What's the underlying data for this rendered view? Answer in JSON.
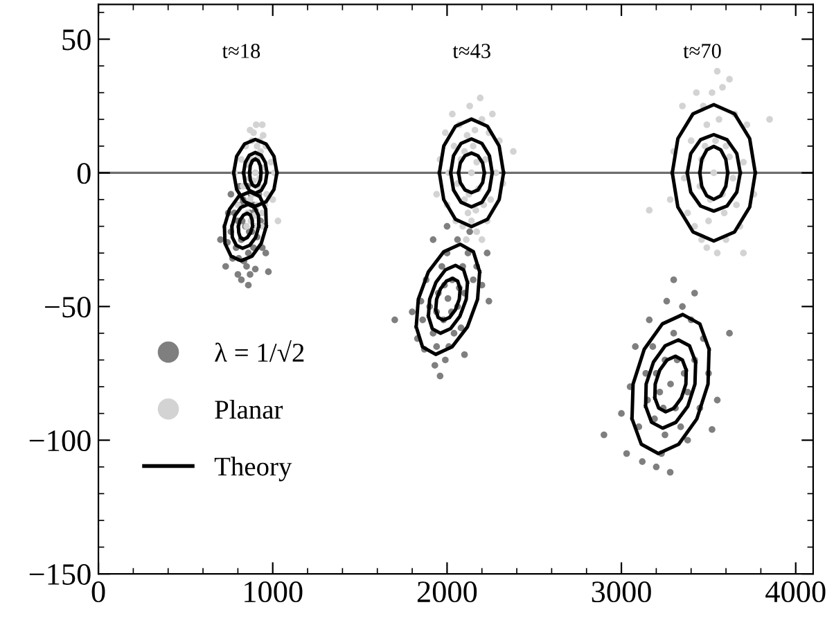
{
  "chart_data": {
    "type": "scatter",
    "xlim": [
      0,
      4100
    ],
    "ylim": [
      -150,
      63
    ],
    "xticks": [
      0,
      1000,
      2000,
      3000,
      4000,
      {
        "value": 200,
        "label": null
      },
      {
        "value": 400,
        "label": null
      },
      {
        "value": 600,
        "label": null
      },
      {
        "value": 800,
        "label": null
      },
      {
        "value": 1200,
        "label": null
      },
      {
        "value": 1400,
        "label": null
      },
      {
        "value": 1600,
        "label": null
      },
      {
        "value": 1800,
        "label": null
      },
      {
        "value": 2200,
        "label": null
      },
      {
        "value": 2400,
        "label": null
      },
      {
        "value": 2600,
        "label": null
      },
      {
        "value": 2800,
        "label": null
      },
      {
        "value": 3200,
        "label": null
      },
      {
        "value": 3400,
        "label": null
      },
      {
        "value": 3600,
        "label": null
      },
      {
        "value": 3800,
        "label": null
      }
    ],
    "yticks": [
      {
        "value": -150,
        "label": "−150"
      },
      {
        "value": -100,
        "label": "−100"
      },
      {
        "value": -50,
        "label": "−50"
      },
      0,
      50,
      {
        "value": -140,
        "label": null
      },
      {
        "value": -130,
        "label": null
      },
      {
        "value": -120,
        "label": null
      },
      {
        "value": -110,
        "label": null
      },
      {
        "value": -90,
        "label": null
      },
      {
        "value": -80,
        "label": null
      },
      {
        "value": -70,
        "label": null
      },
      {
        "value": -60,
        "label": null
      },
      {
        "value": -40,
        "label": null
      },
      {
        "value": -30,
        "label": null
      },
      {
        "value": -20,
        "label": null
      },
      {
        "value": -10,
        "label": null
      },
      {
        "value": 10,
        "label": null
      },
      {
        "value": 20,
        "label": null
      },
      {
        "value": 30,
        "label": null
      },
      {
        "value": 40,
        "label": null
      },
      {
        "value": 60,
        "label": null
      }
    ],
    "grid": false,
    "legend": "bottom left",
    "ref_lines": [
      {
        "axis": "y",
        "value": 0,
        "color": "#6e6e6e"
      }
    ],
    "annotations": [
      "t≈18",
      "t≈43",
      "t≈70"
    ],
    "series": [
      {
        "name": "λ = 1/√2",
        "marker": "circle",
        "color": "#7f7f7f",
        "x": [
          843,
          870,
          820,
          800,
          880,
          860,
          830,
          900,
          790,
          760,
          850,
          910,
          815,
          875,
          770,
          930,
          740,
          800,
          860,
          900,
          960,
          700,
          820,
          950,
          780,
          890,
          835,
          855,
          745,
          975,
          730,
          890,
          810,
          920,
          870,
          805,
          760,
          940,
          825,
          865,
          2005,
          2030,
          1980,
          1950,
          2060,
          2090,
          1920,
          2000,
          2100,
          1900,
          2040,
          1970,
          2120,
          1860,
          2060,
          1940,
          2150,
          1880,
          2010,
          2080,
          1990,
          1850,
          2170,
          1930,
          2000,
          2200,
          1800,
          1960,
          2100,
          1700,
          2240,
          1870,
          2130,
          1920,
          2025,
          1985,
          2070,
          1940,
          1830,
          2230,
          3282,
          3320,
          3240,
          3200,
          3380,
          3300,
          3250,
          3150,
          3420,
          3340,
          3180,
          3100,
          3400,
          3230,
          3450,
          3050,
          3350,
          3120,
          3280,
          3500,
          3000,
          3380,
          3160,
          3420,
          2900,
          3550,
          3300,
          3080,
          3200,
          3620,
          3250,
          3310,
          3190,
          3360,
          3140,
          3470,
          3030,
          3260,
          3520,
          3220
        ],
        "values": [
          -20,
          -15,
          -25,
          -18,
          -22,
          -30,
          -10,
          -14,
          -28,
          -22,
          -35,
          -24,
          -12,
          -8,
          -32,
          -18,
          -26,
          -38,
          -42,
          -36,
          -30,
          -25,
          -40,
          -20,
          -15,
          -28,
          -33,
          -5,
          -15,
          -37,
          -35,
          -12,
          -5,
          -8,
          -38,
          -32,
          -8,
          -28,
          -18,
          -22,
          -47,
          -40,
          -55,
          -45,
          -50,
          -35,
          -60,
          -30,
          -45,
          -50,
          -60,
          -35,
          -30,
          -55,
          -25,
          -65,
          -40,
          -40,
          -65,
          -58,
          -70,
          -48,
          -35,
          -72,
          -20,
          -42,
          -52,
          -76,
          -68,
          -55,
          -48,
          -66,
          -22,
          -25,
          -52,
          -42,
          -43,
          -52,
          -62,
          -30,
          -79,
          -70,
          -88,
          -75,
          -82,
          -60,
          -98,
          -85,
          -70,
          -95,
          -65,
          -95,
          -55,
          -105,
          -88,
          -80,
          -50,
          -108,
          -112,
          -75,
          -90,
          -100,
          -55,
          -45,
          -98,
          -85,
          -40,
          -65,
          -110,
          -60,
          -70,
          -88,
          -92,
          -75,
          -75,
          -62,
          -105,
          -48,
          -96,
          -82
        ]
      },
      {
        "name": "Planar",
        "marker": "circle",
        "color": "#d3d3d3",
        "x": [
          900,
          880,
          920,
          870,
          930,
          890,
          910,
          860,
          950,
          845,
          940,
          875,
          925,
          905,
          830,
          965,
          885,
          915,
          855,
          945,
          895,
          870,
          960,
          820,
          1000,
          990,
          850,
          935,
          1030,
          780,
          910,
          890,
          955,
          865,
          925,
          880,
          900,
          1010,
          800,
          940,
          2140,
          2100,
          2180,
          2060,
          2220,
          2120,
          2160,
          2040,
          2250,
          2090,
          2200,
          2010,
          2280,
          2130,
          2170,
          2070,
          2230,
          2000,
          2300,
          2110,
          2190,
          2050,
          1960,
          2320,
          2150,
          2125,
          2210,
          2080,
          2240,
          1990,
          2380,
          2140,
          2170,
          2100,
          2030,
          2260,
          1940,
          2200,
          2115,
          2165,
          3530,
          3480,
          3580,
          3450,
          3620,
          3500,
          3560,
          3400,
          3660,
          3470,
          3600,
          3360,
          3700,
          3520,
          3550,
          3420,
          3650,
          3300,
          3760,
          3490,
          3580,
          3350,
          3720,
          3380,
          3680,
          3540,
          3510,
          3600,
          3460,
          3640,
          3160,
          3850,
          3430,
          3620,
          3550,
          3700,
          3280,
          3460,
          3590,
          3490
        ],
        "values": [
          0,
          5,
          -5,
          -10,
          8,
          15,
          -12,
          3,
          2,
          10,
          -15,
          -18,
          12,
          18,
          -5,
          -8,
          -8,
          6,
          -15,
          14,
          -16,
          16,
          10,
          5,
          -10,
          4,
          -20,
          -20,
          -18,
          0,
          10,
          -3,
          -12,
          -2,
          -2,
          12,
          -20,
          0,
          -12,
          18,
          0,
          8,
          -6,
          -4,
          5,
          -15,
          16,
          10,
          -10,
          -20,
          20,
          0,
          0,
          25,
          -22,
          18,
          -18,
          -12,
          12,
          -25,
          28,
          -18,
          5,
          -4,
          10,
          -8,
          -12,
          5,
          15,
          15,
          8,
          -18,
          4,
          -10,
          22,
          22,
          -8,
          -25,
          14,
          -14,
          0,
          10,
          -8,
          -5,
          6,
          -18,
          20,
          12,
          -12,
          25,
          -25,
          -2,
          4,
          30,
          -30,
          -20,
          22,
          8,
          -8,
          -28,
          32,
          25,
          18,
          -15,
          -20,
          12,
          -10,
          10,
          5,
          -2,
          -14,
          20,
          30,
          35,
          38,
          -30,
          -10,
          -25,
          -15,
          18
        ]
      },
      {
        "name": "Theory",
        "type": "line",
        "color": "#000000",
        "x": [
          776,
          793,
          838,
          900,
          962,
          1007,
          1024,
          900,
          776,
          793,
          838,
          900,
          962,
          1007,
          1024
        ],
        "values": [
          0,
          6.2,
          10.8,
          12.5,
          10.8,
          6.2,
          0,
          null,
          0,
          -6.2,
          -10.8,
          -12.5,
          -10.8,
          -6.2,
          0
        ]
      },
      {
        "type": "line",
        "color": "#000000",
        "x": [
          833,
          842,
          866,
          900,
          934,
          958,
          967,
          900,
          833,
          842,
          866,
          900,
          934,
          958,
          967
        ],
        "values": [
          0,
          3.8,
          6.6,
          7.6,
          6.6,
          3.8,
          0,
          null,
          0,
          -3.8,
          -6.6,
          -7.6,
          -6.6,
          -3.8,
          0
        ]
      },
      {
        "type": "line",
        "color": "#000000",
        "x": [
          867,
          871,
          883,
          900,
          917,
          929,
          933,
          900,
          867,
          871,
          883,
          900,
          917,
          929,
          933
        ],
        "values": [
          0,
          2.6,
          4.5,
          5.2,
          4.5,
          2.6,
          0,
          null,
          0,
          -2.6,
          -4.5,
          -5.2,
          -4.5,
          -2.6,
          0
        ]
      },
      {
        "type": "line",
        "color": "#000000",
        "x": [
          1956,
          1981,
          2048,
          2140,
          2232,
          2299,
          2324,
          2140,
          1956,
          1981,
          2048,
          2140,
          2232,
          2299,
          2324
        ],
        "values": [
          0,
          10,
          17.4,
          20.1,
          17.4,
          10,
          0,
          null,
          0,
          -10,
          -17.4,
          -20.1,
          -17.4,
          -10,
          0
        ]
      },
      {
        "type": "line",
        "color": "#000000",
        "x": [
          2021,
          2037,
          2080,
          2140,
          2200,
          2243,
          2259,
          2140,
          2021,
          2037,
          2080,
          2140,
          2200,
          2243,
          2259
        ],
        "values": [
          0,
          6.4,
          11,
          12.7,
          11,
          6.4,
          0,
          null,
          0,
          -6.4,
          -11,
          -12.7,
          -11,
          -6.4,
          0
        ]
      },
      {
        "type": "line",
        "color": "#000000",
        "x": [
          2066,
          2076,
          2103,
          2140,
          2177,
          2204,
          2214,
          2140,
          2066,
          2076,
          2103,
          2140,
          2177,
          2204,
          2214
        ],
        "values": [
          0,
          3.7,
          6.4,
          7.4,
          6.4,
          3.7,
          0,
          null,
          0,
          -3.7,
          -6.4,
          -7.4,
          -6.4,
          -3.7,
          0
        ]
      },
      {
        "type": "line",
        "color": "#000000",
        "x": [
          3292,
          3324,
          3411,
          3530,
          3649,
          3736,
          3768,
          3530,
          3292,
          3324,
          3411,
          3530,
          3649,
          3736,
          3768
        ],
        "values": [
          0,
          12.8,
          22.1,
          25.5,
          22.1,
          12.8,
          0,
          null,
          0,
          -12.8,
          -22.1,
          -25.5,
          -22.1,
          -12.8,
          0
        ]
      },
      {
        "type": "line",
        "color": "#000000",
        "x": [
          3378,
          3398,
          3454,
          3530,
          3606,
          3662,
          3682,
          3530,
          3378,
          3398,
          3454,
          3530,
          3606,
          3662,
          3682
        ],
        "values": [
          0,
          7.2,
          12.4,
          14.3,
          12.4,
          7.2,
          0,
          null,
          0,
          -7.2,
          -12.4,
          -14.3,
          -12.4,
          -7.2,
          0
        ]
      },
      {
        "type": "line",
        "color": "#000000",
        "x": [
          3450,
          3461,
          3490,
          3530,
          3570,
          3599,
          3610,
          3530,
          3450,
          3461,
          3490,
          3530,
          3570,
          3599,
          3610
        ],
        "values": [
          0,
          5,
          8.6,
          9.9,
          8.6,
          5,
          0,
          null,
          0,
          -5,
          -8.6,
          -9.9,
          -8.6,
          -5,
          0
        ]
      },
      {
        "type": "line",
        "color": "#000000",
        "x": [
          723,
          752,
          805,
          868,
          925,
          960,
          963,
          843,
          723,
          726,
          761,
          818,
          881,
          934,
          963
        ],
        "values": [
          -20,
          -13.6,
          -8.8,
          -7.1,
          -8.8,
          -13.6,
          -20,
          null,
          -20,
          -26.4,
          -31.2,
          -32.9,
          -31.2,
          -26.4,
          -20
        ]
      },
      {
        "type": "line",
        "color": "#000000",
        "x": [
          766,
          784,
          818,
          859,
          895,
          918,
          920,
          843,
          766,
          768,
          791,
          827,
          868,
          902,
          920
        ],
        "values": [
          -20,
          -15.9,
          -12.9,
          -11.8,
          -12.9,
          -15.9,
          -20,
          null,
          -20,
          -24.1,
          -27.1,
          -28.2,
          -27.1,
          -24.1,
          -20
        ]
      },
      {
        "type": "line",
        "color": "#000000",
        "x": [
          803,
          813,
          832,
          853,
          872,
          882,
          884,
          843,
          803,
          805,
          814,
          833,
          854,
          873,
          884
        ],
        "values": [
          -20,
          -17.6,
          -15.8,
          -15.1,
          -15.8,
          -17.6,
          -20,
          null,
          -20,
          -22.4,
          -24.2,
          -24.9,
          -24.2,
          -22.4,
          -20
        ]
      },
      {
        "type": "line",
        "color": "#000000",
        "x": [
          1823,
          1835,
          1893,
          1981,
          2075,
          2151,
          2187,
          2005,
          1823,
          1859,
          1935,
          2029,
          2117,
          2175,
          2187
        ],
        "values": [
          -57.6,
          -47.3,
          -37,
          -29.5,
          -26.7,
          -29.5,
          -37,
          null,
          -57.6,
          -65.1,
          -67.9,
          -65.1,
          -57.6,
          -47.3,
          -37
        ]
      },
      {
        "type": "line",
        "color": "#000000",
        "x": [
          1893,
          1900,
          1936,
          1990,
          2048,
          2095,
          2117,
          2005,
          1893,
          1915,
          1962,
          2020,
          2074,
          2110,
          2117
        ],
        "values": [
          -53.6,
          -47.3,
          -41,
          -36.3,
          -34.6,
          -36.3,
          -41,
          null,
          -53.6,
          -58.3,
          -60,
          -58.3,
          -53.6,
          -47.3,
          -41
        ]
      },
      {
        "type": "line",
        "color": "#000000",
        "x": [
          1935,
          1940,
          1962,
          1996,
          2032,
          2061,
          2075,
          2005,
          1935,
          1949,
          1978,
          2014,
          2048,
          2070,
          2075
        ],
        "values": [
          -51.2,
          -47.3,
          -43.4,
          -40.5,
          -39.5,
          -40.5,
          -43.4,
          null,
          -51.2,
          -54.1,
          -55.1,
          -54.1,
          -51.2,
          -47.3,
          -43.4
        ]
      },
      {
        "type": "line",
        "color": "#000000",
        "x": [
          3061,
          3067,
          3131,
          3235,
          3352,
          3450,
          3503,
          3282,
          3061,
          3114,
          3212,
          3329,
          3433,
          3497,
          3503
        ],
        "values": [
          -92,
          -79,
          -66,
          -56.5,
          -53,
          -56.5,
          -66,
          null,
          -92,
          -101.5,
          -105,
          -101.5,
          -92,
          -79,
          -66
        ]
      },
      {
        "type": "line",
        "color": "#000000",
        "x": [
          3139,
          3142,
          3184,
          3251,
          3327,
          3391,
          3426,
          3282,
          3139,
          3173,
          3237,
          3313,
          3381,
          3422,
          3426
        ],
        "values": [
          -87.3,
          -79,
          -70.8,
          -64.7,
          -62.5,
          -64.7,
          -70.8,
          null,
          -87.3,
          -93.3,
          -95.5,
          -93.3,
          -87.3,
          -79,
          -70.8
        ]
      },
      {
        "type": "line",
        "color": "#000000",
        "x": [
          3192,
          3194,
          3220,
          3262,
          3310,
          3350,
          3372,
          3282,
          3192,
          3214,
          3254,
          3302,
          3344,
          3370,
          3372
        ],
        "values": [
          -84.2,
          -79,
          -73.8,
          -70,
          -68.6,
          -70,
          -73.8,
          null,
          -84.2,
          -88,
          -89.4,
          -88,
          -84.2,
          -79,
          -73.8
        ]
      }
    ]
  }
}
